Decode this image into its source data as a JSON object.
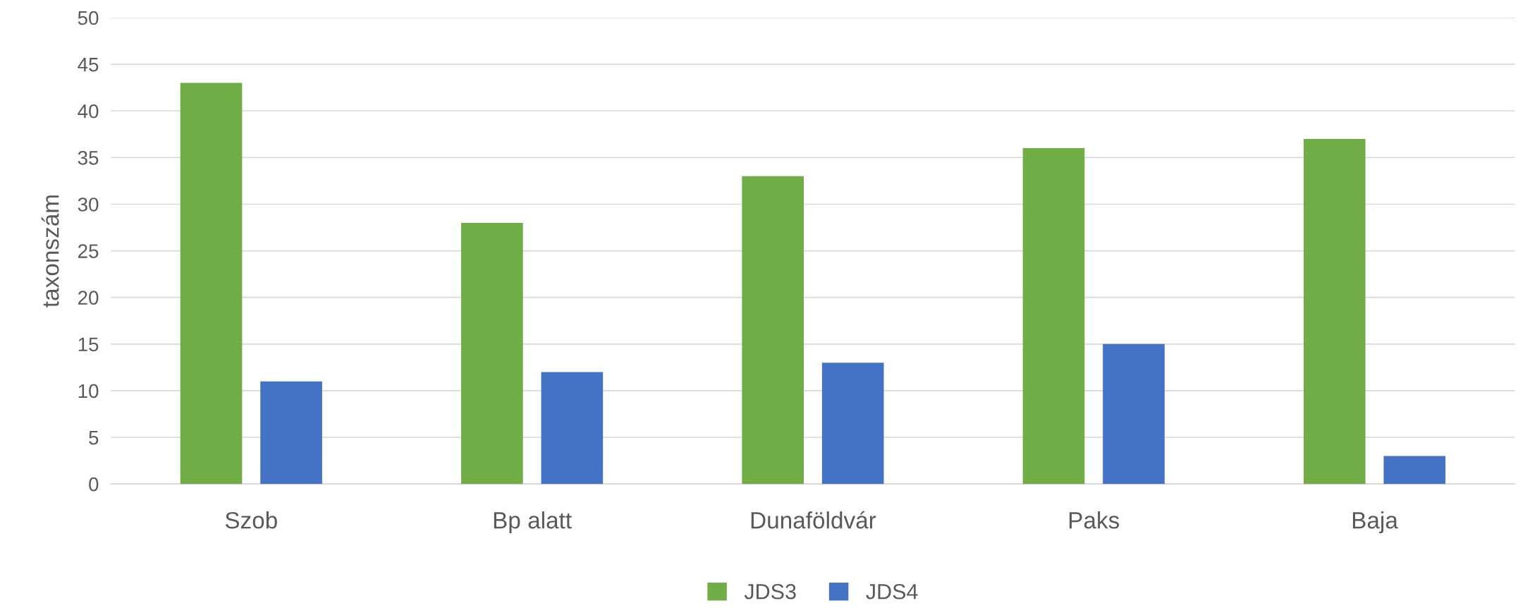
{
  "chart_data": {
    "type": "bar",
    "ylabel": "taxonszám",
    "categories": [
      "Szob",
      "Bp alatt",
      "Dunaföldvár",
      "Paks",
      "Baja"
    ],
    "series": [
      {
        "name": "JDS3",
        "color": "#70ad47",
        "values": [
          43,
          28,
          33,
          36,
          37
        ]
      },
      {
        "name": "JDS4",
        "color": "#4472c4",
        "values": [
          11,
          12,
          13,
          15,
          3
        ]
      }
    ],
    "ylim": [
      0,
      50
    ],
    "yticks": [
      0,
      5,
      10,
      15,
      20,
      25,
      30,
      35,
      40,
      45,
      50
    ],
    "grid": "y",
    "legend": "bottom"
  }
}
